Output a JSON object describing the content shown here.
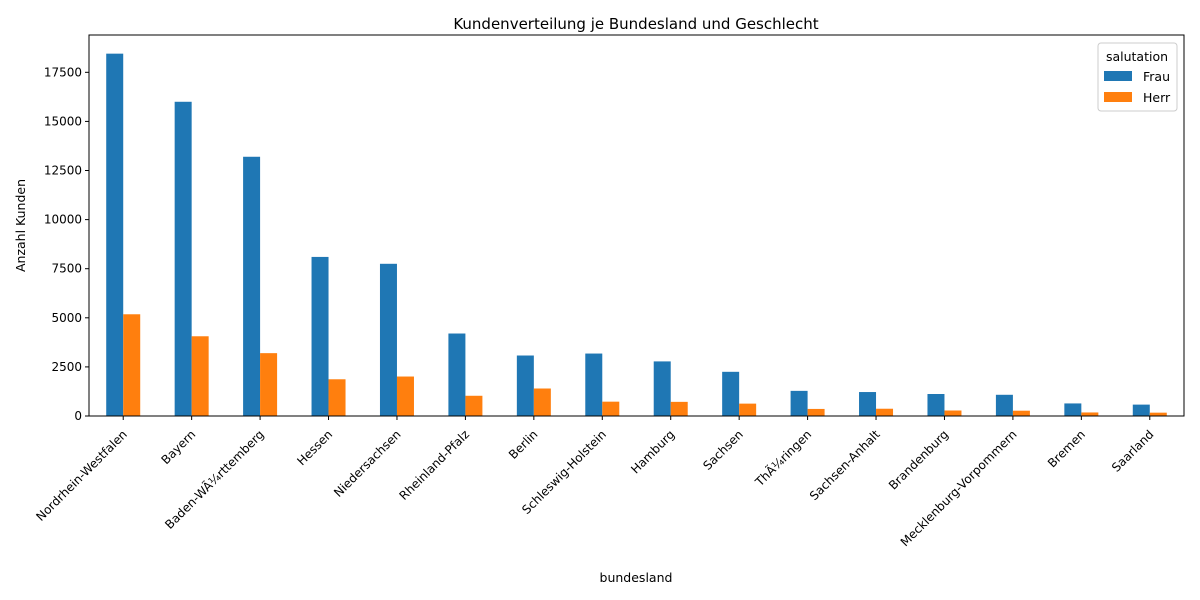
{
  "chart_data": {
    "type": "bar",
    "title": "Kundenverteilung je Bundesland und Geschlecht",
    "xlabel": "bundesland",
    "ylabel": "Anzahl Kunden",
    "ylim": [
      0,
      19400
    ],
    "yticks": [
      0,
      2500,
      5000,
      7500,
      10000,
      12500,
      15000,
      17500
    ],
    "ytick_labels": [
      "0",
      "2500",
      "5000",
      "7500",
      "10000",
      "12500",
      "15000",
      "17500"
    ],
    "categories": [
      "Nordrhein-Westfalen",
      "Bayern",
      "Baden-WÃ¼rttemberg",
      "Hessen",
      "Niedersachsen",
      "Rheinland-Pfalz",
      "Berlin",
      "Schleswig-Holstein",
      "Hamburg",
      "Sachsen",
      "ThÃ¼ringen",
      "Sachsen-Anhalt",
      "Brandenburg",
      "Mecklenburg-Vorpommern",
      "Bremen",
      "Saarland"
    ],
    "legend_title": "salutation",
    "legend_position": "top-right",
    "grid": false,
    "series": [
      {
        "name": "Frau",
        "color": "#1f77b4",
        "values": [
          18450,
          16000,
          13200,
          8100,
          7750,
          4200,
          3080,
          3180,
          2780,
          2250,
          1280,
          1220,
          1120,
          1080,
          640,
          580
        ]
      },
      {
        "name": "Herr",
        "color": "#ff7f0e",
        "values": [
          5180,
          4060,
          3200,
          1870,
          2010,
          1030,
          1400,
          730,
          720,
          630,
          360,
          370,
          280,
          270,
          180,
          170
        ]
      }
    ]
  }
}
